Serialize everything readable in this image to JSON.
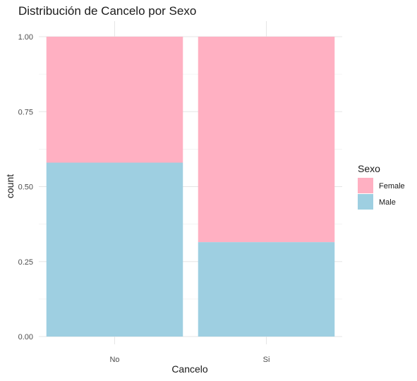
{
  "chart_data": {
    "type": "bar",
    "stacked": true,
    "title": "Distribución de Cancelo por Sexo",
    "xlabel": "Cancelo",
    "ylabel": "count",
    "categories": [
      "No",
      "Si"
    ],
    "ylim": [
      0,
      1
    ],
    "yticks": [
      "0.00",
      "0.25",
      "0.50",
      "0.75",
      "1.00"
    ],
    "series": [
      {
        "name": "Male",
        "color": "#9ecfe1",
        "values": [
          0.58,
          0.315
        ]
      },
      {
        "name": "Female",
        "color": "#ffb0c2",
        "values": [
          0.42,
          0.685
        ]
      }
    ],
    "legend": {
      "title": "Sexo",
      "position": "right",
      "items": [
        {
          "label": "Female",
          "color": "#ffb0c2"
        },
        {
          "label": "Male",
          "color": "#9ecfe1"
        }
      ]
    },
    "grid": true
  }
}
